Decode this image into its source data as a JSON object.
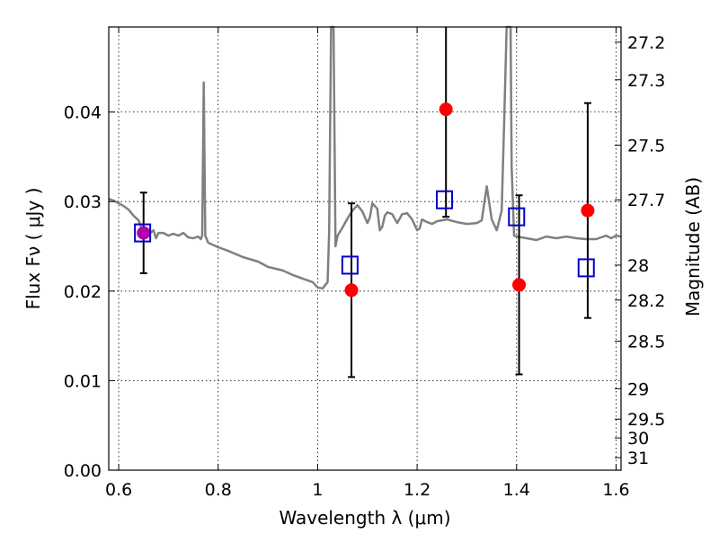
{
  "chart_data": {
    "type": "scatter",
    "xlabel": "Wavelength  λ (μm)",
    "ylabel_left": "Flux  Fν  ( μJy )",
    "ylabel_right": "Magnitude (AB)",
    "xlim": [
      0.58,
      1.61
    ],
    "ylim": [
      0.0,
      0.0495
    ],
    "x_ticks": [
      {
        "value": 0.6,
        "label": "0.6"
      },
      {
        "value": 0.8,
        "label": "0.8"
      },
      {
        "value": 1.0,
        "label": "1"
      },
      {
        "value": 1.2,
        "label": "1.2"
      },
      {
        "value": 1.4,
        "label": "1.4"
      },
      {
        "value": 1.6,
        "label": "1.6"
      }
    ],
    "y_ticks": [
      {
        "value": 0.0,
        "label": "0.00"
      },
      {
        "value": 0.01,
        "label": "0.01"
      },
      {
        "value": 0.02,
        "label": "0.02"
      },
      {
        "value": 0.03,
        "label": "0.03"
      },
      {
        "value": 0.04,
        "label": "0.04"
      }
    ],
    "right_ticks": [
      {
        "label": "27.2",
        "flux": 0.0478
      },
      {
        "label": "27.3",
        "flux": 0.0436
      },
      {
        "label": "27.5",
        "flux": 0.0363
      },
      {
        "label": "27.7",
        "flux": 0.0302
      },
      {
        "label": "28",
        "flux": 0.0229
      },
      {
        "label": "28.2",
        "flux": 0.019
      },
      {
        "label": "28.5",
        "flux": 0.0144
      },
      {
        "label": "29",
        "flux": 0.0091
      },
      {
        "label": "29.5",
        "flux": 0.0057
      },
      {
        "label": "30",
        "flux": 0.0036
      },
      {
        "label": "31",
        "flux": 0.0014
      }
    ],
    "grid": true,
    "colors": {
      "sed": "#808080",
      "observed": "#ff0000",
      "model": "#0000cc",
      "overlap": "#b000b0",
      "errorbar": "#000000"
    },
    "series": [
      {
        "kind": "line",
        "points": [
          [
            0.58,
            0.0303
          ],
          [
            0.59,
            0.0301
          ],
          [
            0.6,
            0.0298
          ],
          [
            0.61,
            0.0295
          ],
          [
            0.62,
            0.0291
          ],
          [
            0.63,
            0.0284
          ],
          [
            0.64,
            0.0279
          ],
          [
            0.645,
            0.0272
          ],
          [
            0.65,
            0.0268
          ],
          [
            0.655,
            0.0264
          ],
          [
            0.66,
            0.0263
          ],
          [
            0.67,
            0.0268
          ],
          [
            0.675,
            0.0259
          ],
          [
            0.68,
            0.0265
          ],
          [
            0.69,
            0.0265
          ],
          [
            0.7,
            0.0262
          ],
          [
            0.71,
            0.0264
          ],
          [
            0.72,
            0.0262
          ],
          [
            0.73,
            0.0265
          ],
          [
            0.74,
            0.026
          ],
          [
            0.75,
            0.0259
          ],
          [
            0.76,
            0.0261
          ],
          [
            0.765,
            0.0258
          ],
          [
            0.768,
            0.0262
          ],
          [
            0.771,
            0.0433
          ],
          [
            0.774,
            0.0262
          ],
          [
            0.78,
            0.0254
          ],
          [
            0.8,
            0.0249
          ],
          [
            0.82,
            0.0245
          ],
          [
            0.85,
            0.0238
          ],
          [
            0.88,
            0.0233
          ],
          [
            0.9,
            0.0227
          ],
          [
            0.93,
            0.0223
          ],
          [
            0.95,
            0.0218
          ],
          [
            0.97,
            0.0214
          ],
          [
            0.99,
            0.021
          ],
          [
            1.0,
            0.0204
          ],
          [
            1.01,
            0.0203
          ],
          [
            1.02,
            0.021
          ],
          [
            1.023,
            0.0265
          ],
          [
            1.027,
            0.0495
          ],
          [
            1.032,
            0.0495
          ],
          [
            1.036,
            0.025
          ],
          [
            1.04,
            0.0262
          ],
          [
            1.05,
            0.0271
          ],
          [
            1.06,
            0.0281
          ],
          [
            1.07,
            0.029
          ],
          [
            1.08,
            0.0296
          ],
          [
            1.09,
            0.0289
          ],
          [
            1.1,
            0.0276
          ],
          [
            1.105,
            0.0282
          ],
          [
            1.11,
            0.0298
          ],
          [
            1.12,
            0.0292
          ],
          [
            1.125,
            0.0268
          ],
          [
            1.13,
            0.0272
          ],
          [
            1.135,
            0.0284
          ],
          [
            1.14,
            0.0288
          ],
          [
            1.15,
            0.0286
          ],
          [
            1.16,
            0.0276
          ],
          [
            1.17,
            0.0286
          ],
          [
            1.18,
            0.0287
          ],
          [
            1.19,
            0.028
          ],
          [
            1.2,
            0.0268
          ],
          [
            1.205,
            0.027
          ],
          [
            1.21,
            0.028
          ],
          [
            1.22,
            0.0277
          ],
          [
            1.23,
            0.0275
          ],
          [
            1.24,
            0.0278
          ],
          [
            1.26,
            0.028
          ],
          [
            1.28,
            0.0277
          ],
          [
            1.3,
            0.0275
          ],
          [
            1.32,
            0.0276
          ],
          [
            1.33,
            0.0279
          ],
          [
            1.34,
            0.0317
          ],
          [
            1.35,
            0.028
          ],
          [
            1.36,
            0.0268
          ],
          [
            1.37,
            0.029
          ],
          [
            1.375,
            0.039
          ],
          [
            1.38,
            0.0495
          ],
          [
            1.388,
            0.0495
          ],
          [
            1.39,
            0.0338
          ],
          [
            1.395,
            0.0262
          ],
          [
            1.4,
            0.0261
          ],
          [
            1.42,
            0.0259
          ],
          [
            1.44,
            0.0257
          ],
          [
            1.46,
            0.0261
          ],
          [
            1.48,
            0.0259
          ],
          [
            1.5,
            0.0261
          ],
          [
            1.52,
            0.0259
          ],
          [
            1.54,
            0.0258
          ],
          [
            1.56,
            0.0258
          ],
          [
            1.58,
            0.0262
          ],
          [
            1.59,
            0.0259
          ],
          [
            1.6,
            0.0262
          ],
          [
            1.61,
            0.0261
          ]
        ]
      },
      {
        "kind": "points-with-errorbars",
        "points": [
          {
            "x": 0.65,
            "y": 0.0265,
            "err": 0.0045
          },
          {
            "x": 1.068,
            "y": 0.0201,
            "err": 0.0097
          },
          {
            "x": 1.258,
            "y": 0.0403,
            "err": 0.012
          },
          {
            "x": 1.405,
            "y": 0.0207,
            "err": 0.01
          },
          {
            "x": 1.543,
            "y": 0.029,
            "err": 0.012
          }
        ]
      },
      {
        "kind": "open-squares",
        "points": [
          {
            "x": 0.648,
            "y": 0.0265
          },
          {
            "x": 1.065,
            "y": 0.0229
          },
          {
            "x": 1.255,
            "y": 0.0302
          },
          {
            "x": 1.4,
            "y": 0.0283
          },
          {
            "x": 1.54,
            "y": 0.0226
          }
        ]
      }
    ]
  }
}
